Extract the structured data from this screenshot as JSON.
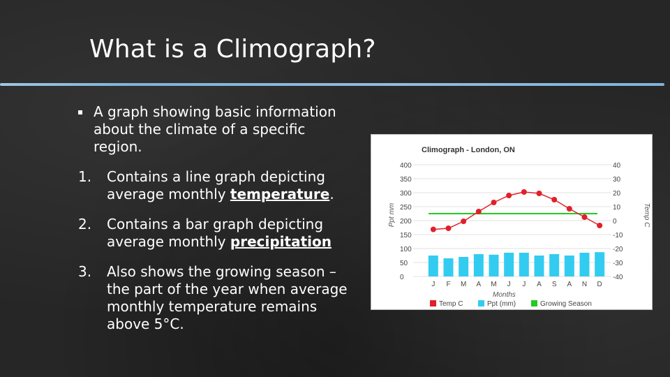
{
  "slide": {
    "title": "What is a Climograph?",
    "bullet": "A graph showing basic information about the climate of a specific region.",
    "items": [
      {
        "num": "1.",
        "pre": "Contains a line graph depicting average monthly ",
        "key": "temperature",
        "post": "."
      },
      {
        "num": "2.",
        "pre": "Contains a bar graph depicting average monthly ",
        "key": "precipitation",
        "post": ""
      },
      {
        "num": "3.",
        "pre": "Also shows the growing season – the part of the year when average monthly temperature remains above 5°C.",
        "key": "",
        "post": ""
      }
    ]
  },
  "colors": {
    "temp": "#e0202a",
    "ppt": "#33ccf0",
    "growing": "#22cc22",
    "rule": "#7fb3d9"
  },
  "chart_data": {
    "type": "bar+line",
    "title": "Climograph - London, ON",
    "xlabel": "Months",
    "ylabel_left": "Ppt mm",
    "ylabel_right": "Temp C",
    "categories": [
      "J",
      "F",
      "M",
      "A",
      "M",
      "J",
      "J",
      "A",
      "S",
      "A",
      "N",
      "D"
    ],
    "ylim_left": [
      0,
      400
    ],
    "ylim_right": [
      -40,
      40
    ],
    "ticks_left": [
      "400",
      "350",
      "300",
      "250",
      "200",
      "150",
      "100",
      "50",
      "0"
    ],
    "ticks_right": [
      "40",
      "30",
      "20",
      "10",
      "0",
      "-10",
      "-20",
      "-30",
      "-40"
    ],
    "grid": true,
    "series": [
      {
        "name": "Temp C",
        "type": "line",
        "axis": "right",
        "values": [
          -6.3,
          -5.5,
          -0.5,
          6.5,
          13,
          18,
          20.5,
          19.5,
          15,
          8.5,
          2.5,
          -3.5
        ]
      },
      {
        "name": "Ppt (mm)",
        "type": "bar",
        "axis": "left",
        "values": [
          75,
          65,
          70,
          80,
          78,
          85,
          85,
          75,
          80,
          75,
          85,
          87
        ]
      },
      {
        "name": "Growing Season",
        "type": "line",
        "axis": "right",
        "values": [
          5,
          5,
          5,
          5,
          5,
          5,
          5,
          5,
          5,
          5,
          5,
          5
        ]
      }
    ],
    "legend": [
      "Temp C",
      "Ppt (mm)",
      "Growing Season"
    ],
    "legend_position": "bottom"
  }
}
